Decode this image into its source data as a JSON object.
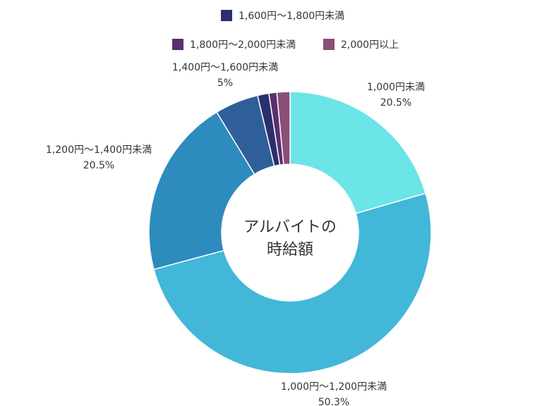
{
  "chart_data": {
    "type": "pie",
    "donut": true,
    "center_label": [
      "アルバイトの",
      "時給額"
    ],
    "legend_placement": "top",
    "slices": [
      {
        "name": "1,000円未満",
        "value": 20.5,
        "label": "20.5%",
        "color": "#6be5e8"
      },
      {
        "name": "1,000円～1,200円未満",
        "value": 50.3,
        "label": "50.3%",
        "color": "#42b7d8"
      },
      {
        "name": "1,200円～1,400円未満",
        "value": 20.5,
        "label": "20.5%",
        "color": "#2e8bbd"
      },
      {
        "name": "1,400円～1,600円未満",
        "value": 5,
        "label": "5%",
        "color": "#2f5f9a"
      },
      {
        "name": "1,600円～1,800円未満",
        "value": 1.3,
        "label": "",
        "color": "#2c2f6e"
      },
      {
        "name": "1,800円～2,000円未満",
        "value": 0.9,
        "label": "",
        "color": "#5a2f6e"
      },
      {
        "name": "2,000円以上",
        "value": 1.5,
        "label": "",
        "color": "#8a4f74"
      }
    ]
  }
}
